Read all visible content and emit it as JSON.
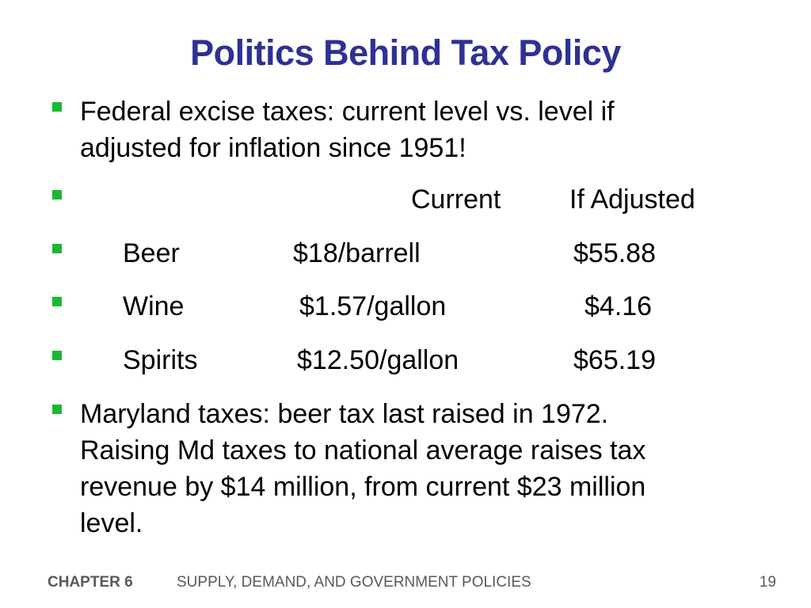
{
  "title": "Politics Behind Tax Policy",
  "bullets": {
    "federal": {
      "line1": "Federal excise taxes:  current level vs. level if",
      "line2": "adjusted for inflation since 1951!"
    },
    "table": {
      "headers": {
        "current": "Current",
        "adjusted": "If Adjusted"
      },
      "rows": [
        {
          "name": "Beer",
          "current": "$18/barrell",
          "adjusted": "$55.88"
        },
        {
          "name": "Wine",
          "current": "$1.57/gallon",
          "adjusted": "$4.16"
        },
        {
          "name": "Spirits",
          "current": "$12.50/gallon",
          "adjusted": "$65.19"
        }
      ]
    },
    "maryland": {
      "line1": "Maryland taxes:  beer tax last raised in 1972.",
      "line2": "Raising Md taxes to national average raises tax",
      "line3": "revenue by $14 million, from current $23 million",
      "line4": "level."
    }
  },
  "footer": {
    "chapter": "CHAPTER 6",
    "subject": "SUPPLY, DEMAND, AND GOVERNMENT POLICIES",
    "page": "19"
  },
  "colors": {
    "title": "#2e3192",
    "bullet": "#19b832",
    "footer": "#595959"
  }
}
